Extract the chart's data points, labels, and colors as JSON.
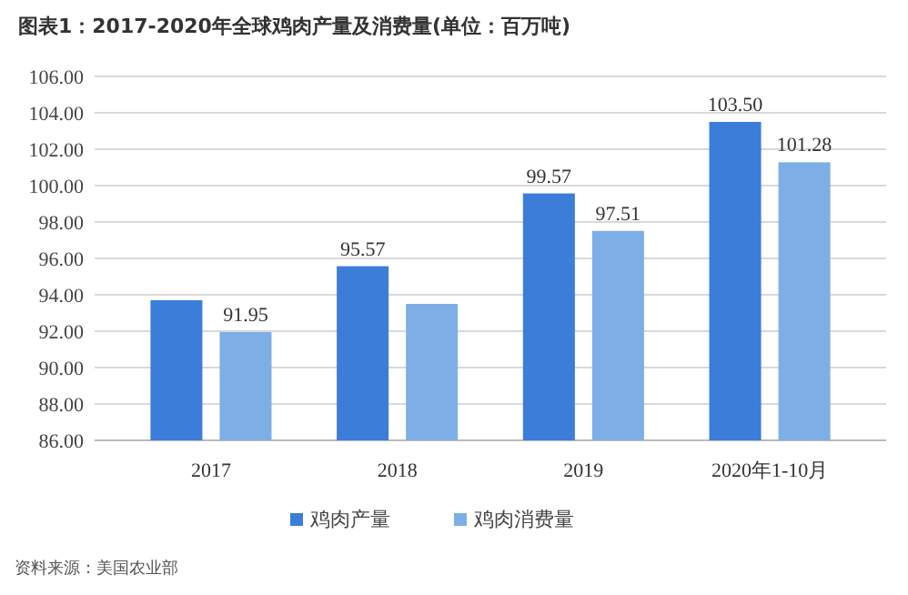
{
  "chart_data": {
    "type": "bar",
    "title": "图表1：2017-2020年全球鸡肉产量及消费量(单位：百万吨)",
    "categories": [
      "2017",
      "2018",
      "2019",
      "2020年1-10月"
    ],
    "series": [
      {
        "name": "鸡肉产量",
        "color": "#3b7dd8",
        "values": [
          93.7,
          95.57,
          99.57,
          103.5
        ],
        "value_labels": [
          null,
          "95.57",
          "99.57",
          "103.50"
        ]
      },
      {
        "name": "鸡肉消费量",
        "color": "#7eaee6",
        "values": [
          91.95,
          93.5,
          97.51,
          101.28
        ],
        "value_labels": [
          "91.95",
          null,
          "97.51",
          "101.28"
        ]
      }
    ],
    "ylim": [
      86,
      106
    ],
    "yticks": [
      {
        "value": 86,
        "label": "86.00"
      },
      {
        "value": 88,
        "label": "88.00"
      },
      {
        "value": 90,
        "label": "90.00"
      },
      {
        "value": 92,
        "label": "92.00"
      },
      {
        "value": 94,
        "label": "94.00"
      },
      {
        "value": 96,
        "label": "96.00"
      },
      {
        "value": 98,
        "label": "98.00"
      },
      {
        "value": 100,
        "label": "100.00"
      },
      {
        "value": 102,
        "label": "102.00"
      },
      {
        "value": 104,
        "label": "104.00"
      },
      {
        "value": 106,
        "label": "106.00"
      }
    ],
    "grid": "y",
    "legend": "bottom",
    "annotations": [
      "资料来源：美国农业部"
    ]
  }
}
